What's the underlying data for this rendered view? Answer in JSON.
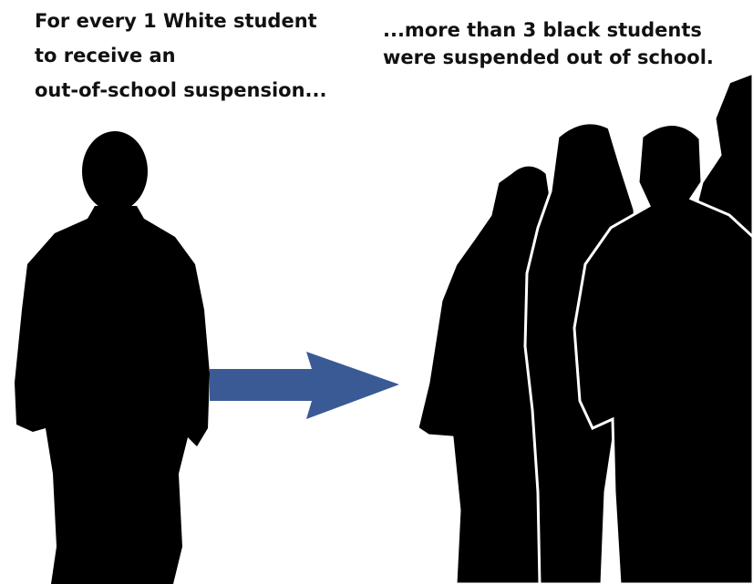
{
  "left_caption": {
    "lines": [
      "For every 1 White student",
      "to receive an",
      "out-of-school suspension..."
    ]
  },
  "right_caption": {
    "lines": [
      "...more than 3 black students",
      "were suspended out of school."
    ]
  }
}
